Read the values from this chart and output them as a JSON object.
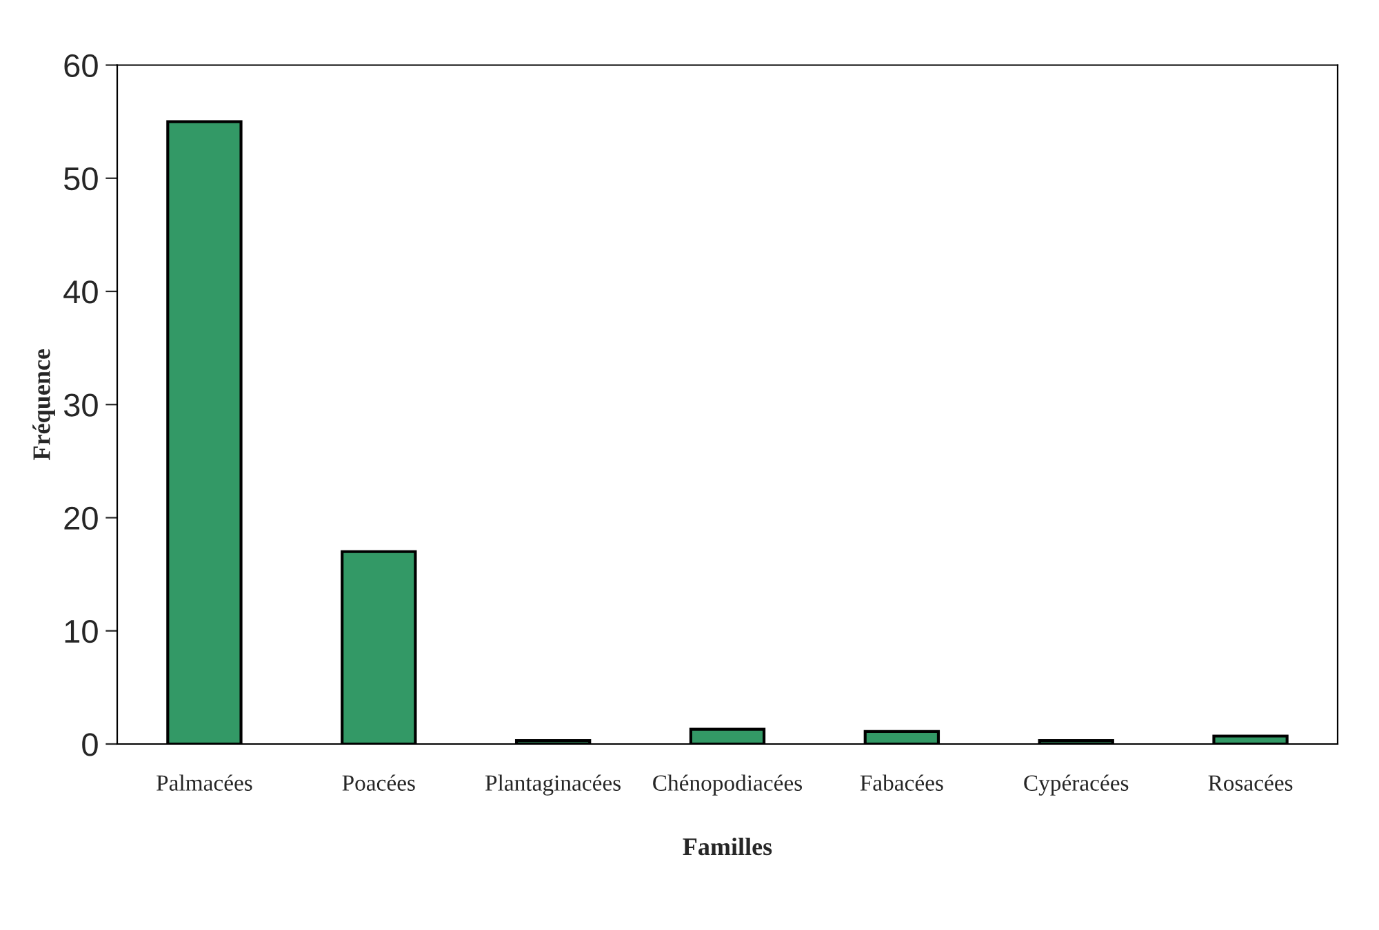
{
  "chart_data": {
    "type": "bar",
    "xlabel": "Familles",
    "ylabel": "Fréquence",
    "categories": [
      "Palmacées",
      "Poacées",
      "Plantaginacées",
      "Chénopodiacées",
      "Fabacées",
      "Cypéracées",
      "Rosacées"
    ],
    "values": [
      55,
      17,
      0.3,
      1.3,
      1.1,
      0.3,
      0.7
    ],
    "color": "#339966",
    "ylim": [
      0,
      60
    ],
    "yticks": [
      0,
      10,
      20,
      30,
      40,
      50,
      60
    ],
    "grid": false
  }
}
